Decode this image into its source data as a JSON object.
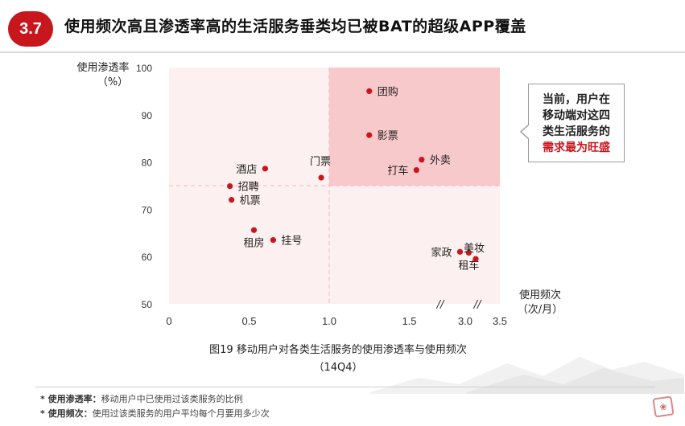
{
  "header": {
    "section_number": "3.7",
    "title": "使用频次高且渗透率高的生活服务垂类均已被BAT的超级APP覆盖"
  },
  "callout": {
    "line1": "当前，用户在",
    "line2": "移动端对这四",
    "line3": "类生活服务的",
    "line4_highlight": "需求最为旺盛"
  },
  "caption": {
    "line1": "图19 移动用户对各类生活服务的使用渗透率与使用频次",
    "line2": "（14Q4）"
  },
  "notes": [
    {
      "label": "* 使用渗透率：",
      "text": "移动用户中已使用过该类服务的比例"
    },
    {
      "label": "* 使用频次：",
      "text": "使用过该类服务的用户平均每个月要用多少次"
    }
  ],
  "colors": {
    "accent": "#c8161d",
    "point": "#c8161d",
    "plot_bg": "#fdf0f0",
    "highlight_quadrant": "#f8c9cb"
  },
  "chart_data": {
    "type": "scatter",
    "title": "图19 移动用户对各类生活服务的使用渗透率与使用频次",
    "xlabel_line1": "使用频次",
    "xlabel_line2": "（次/月）",
    "ylabel_line1": "使用渗透率",
    "ylabel_line2": "（%）",
    "x_ticks": [
      "0",
      "0.5",
      "1.0",
      "1.5",
      "3.0",
      "3.5"
    ],
    "y_ticks": [
      "50",
      "60",
      "70",
      "80",
      "90",
      "100"
    ],
    "xlim": [
      0,
      3.5
    ],
    "ylim": [
      50,
      100
    ],
    "x_axis_break_note": "//",
    "threshold": {
      "x": 1.0,
      "y": 75
    },
    "points": [
      {
        "label": "团购",
        "x": 1.25,
        "y": 95
      },
      {
        "label": "影票",
        "x": 1.25,
        "y": 85.7
      },
      {
        "label": "外卖",
        "x": 1.75,
        "y": 80.5
      },
      {
        "label": "打车",
        "x": 1.6,
        "y": 78.3
      },
      {
        "label": "门票",
        "x": 0.95,
        "y": 76.7
      },
      {
        "label": "酒店",
        "x": 0.6,
        "y": 78.6
      },
      {
        "label": "招聘",
        "x": 0.38,
        "y": 74.9
      },
      {
        "label": "机票",
        "x": 0.39,
        "y": 72
      },
      {
        "label": "租房",
        "x": 0.53,
        "y": 65.6
      },
      {
        "label": "挂号",
        "x": 0.65,
        "y": 63.5
      },
      {
        "label": "家政",
        "x": 2.85,
        "y": 61
      },
      {
        "label": "租车",
        "x": 3.1,
        "y": 60.8
      },
      {
        "label": "美妆",
        "x": 3.3,
        "y": 59.5
      }
    ]
  }
}
